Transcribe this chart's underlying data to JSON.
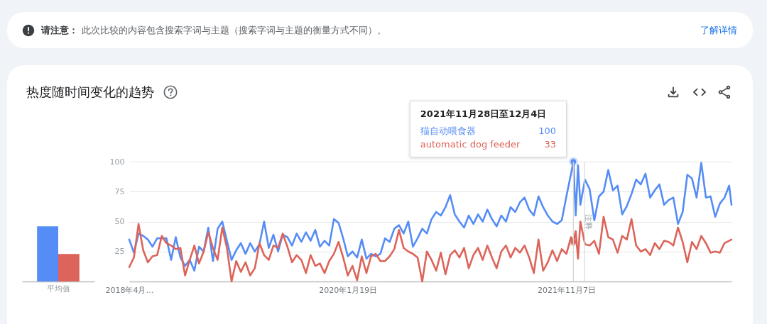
{
  "chart_data": [
    {
      "type": "other",
      "annotations": [
        "请注意：",
        "此次比较的内容包含搜索字词与主题（搜索字词与主题的衡量方式不同）。",
        "了解详情"
      ]
    },
    {
      "type": "bar",
      "title": "热度随时间变化的趋势",
      "categories": [
        "平均值"
      ],
      "series": [
        {
          "color": "#558cf5",
          "values": [
            46
          ]
        },
        {
          "color": "#dc645a",
          "values": [
            23
          ]
        }
      ],
      "ylim": [
        0,
        100
      ],
      "tick_labels": "x"
    },
    {
      "type": "line",
      "x": [
        "2018-04-01",
        "2018-04-15",
        "2018-04-29",
        "2018-05-13",
        "2018-05-27",
        "2018-06-10",
        "2018-06-24",
        "2018-07-08",
        "2018-07-22",
        "2018-08-05",
        "2018-08-19",
        "2018-09-02",
        "2018-09-16",
        "2018-09-30",
        "2018-10-14",
        "2018-10-28",
        "2018-11-11",
        "2018-11-25",
        "2018-12-09",
        "2018-12-23",
        "2019-01-06",
        "2019-01-20",
        "2019-02-03",
        "2019-02-17",
        "2019-03-03",
        "2019-03-17",
        "2019-03-31",
        "2019-04-14",
        "2019-04-28",
        "2019-05-12",
        "2019-05-26",
        "2019-06-09",
        "2019-06-23",
        "2019-07-07",
        "2019-07-21",
        "2019-08-04",
        "2019-08-18",
        "2019-09-01",
        "2019-09-15",
        "2019-09-29",
        "2019-10-13",
        "2019-10-27",
        "2019-11-10",
        "2019-11-24",
        "2019-12-08",
        "2019-12-22",
        "2020-01-05",
        "2020-01-19",
        "2020-02-02",
        "2020-02-16",
        "2020-03-01",
        "2020-03-15",
        "2020-03-29",
        "2020-04-12",
        "2020-04-26",
        "2020-05-10",
        "2020-05-24",
        "2020-06-07",
        "2020-06-21",
        "2020-07-05",
        "2020-07-19",
        "2020-08-02",
        "2020-08-16",
        "2020-08-30",
        "2020-09-13",
        "2020-09-27",
        "2020-10-11",
        "2020-10-25",
        "2020-11-08",
        "2020-11-22",
        "2020-12-06",
        "2020-12-20",
        "2021-01-03",
        "2021-01-17",
        "2021-01-31",
        "2021-02-14",
        "2021-02-28",
        "2021-03-14",
        "2021-03-28",
        "2021-04-11",
        "2021-04-25",
        "2021-05-09",
        "2021-05-23",
        "2021-06-06",
        "2021-06-20",
        "2021-07-04",
        "2021-07-18",
        "2021-08-01",
        "2021-08-15",
        "2021-08-29",
        "2021-09-12",
        "2021-09-26",
        "2021-10-10",
        "2021-10-24",
        "2021-11-07",
        "2021-11-21",
        "2021-11-28",
        "2021-12-05",
        "2021-12-12",
        "2021-12-19",
        "2022-01-02",
        "2022-01-16",
        "2022-01-30",
        "2022-02-13",
        "2022-02-27",
        "2022-03-13",
        "2022-03-27",
        "2022-04-10",
        "2022-04-24",
        "2022-05-08",
        "2022-05-22",
        "2022-06-05",
        "2022-06-19",
        "2022-07-03",
        "2022-07-17",
        "2022-07-31",
        "2022-08-14",
        "2022-08-28",
        "2022-09-11",
        "2022-09-25",
        "2022-10-09",
        "2022-10-23",
        "2022-11-06",
        "2022-11-20",
        "2022-12-04",
        "2022-12-18",
        "2023-01-01",
        "2023-01-15",
        "2023-01-29",
        "2023-02-12",
        "2023-02-26",
        "2023-03-12",
        "2023-03-19"
      ],
      "series": [
        {
          "name": "猫自动喂食器",
          "color": "#558cf5",
          "values": [
            35,
            24,
            40,
            38,
            35,
            29,
            36,
            36,
            36,
            18,
            37,
            20,
            13,
            18,
            9,
            29,
            25,
            45,
            17,
            44,
            50,
            34,
            18,
            26,
            32,
            23,
            32,
            25,
            31,
            50,
            28,
            39,
            25,
            39,
            37,
            30,
            40,
            33,
            41,
            34,
            43,
            29,
            34,
            30,
            52,
            49,
            36,
            21,
            25,
            20,
            35,
            19,
            23,
            21,
            23,
            36,
            33,
            44,
            47,
            40,
            50,
            29,
            36,
            44,
            40,
            52,
            58,
            55,
            62,
            72,
            56,
            50,
            45,
            55,
            48,
            56,
            50,
            60,
            52,
            46,
            55,
            50,
            62,
            58,
            66,
            70,
            60,
            55,
            71,
            62,
            55,
            50,
            48,
            51,
            71,
            90,
            100,
            55,
            97,
            64,
            85,
            77,
            51,
            71,
            75,
            93,
            76,
            80,
            56,
            63,
            73,
            85,
            81,
            90,
            70,
            76,
            81,
            64,
            68,
            70,
            48,
            58,
            89,
            86,
            70,
            99,
            70,
            71,
            54,
            65,
            70,
            80,
            64
          ]
        },
        {
          "name": "automatic dog feeder",
          "color": "#dc645a",
          "values": [
            12,
            20,
            48,
            26,
            16,
            21,
            22,
            38,
            32,
            30,
            27,
            28,
            5,
            18,
            30,
            15,
            25,
            41,
            28,
            18,
            45,
            28,
            0,
            17,
            8,
            16,
            5,
            11,
            32,
            22,
            18,
            30,
            28,
            40,
            29,
            16,
            22,
            18,
            7,
            22,
            13,
            15,
            7,
            17,
            23,
            33,
            20,
            5,
            13,
            1,
            21,
            7,
            21,
            23,
            17,
            17,
            21,
            27,
            43,
            28,
            25,
            23,
            20,
            0,
            25,
            18,
            9,
            24,
            6,
            22,
            26,
            20,
            28,
            11,
            22,
            28,
            18,
            30,
            20,
            11,
            25,
            30,
            20,
            28,
            24,
            30,
            20,
            7,
            35,
            9,
            16,
            26,
            17,
            27,
            23,
            37,
            33,
            42,
            19,
            50,
            31,
            30,
            34,
            23,
            54,
            37,
            35,
            24,
            38,
            35,
            52,
            30,
            25,
            27,
            22,
            32,
            27,
            34,
            33,
            30,
            45,
            33,
            16,
            33,
            27,
            38,
            32,
            24,
            25,
            24,
            32,
            34,
            35
          ]
        },
        {
          "type": "scatter",
          "marker": "circle",
          "x": [
            "2021-11-28",
            "2021-11-28"
          ],
          "values": [
            100,
            33
          ],
          "colors": [
            "#558cf5",
            "#dc645a"
          ]
        }
      ],
      "xlim": [
        "2018-04-01",
        "2023-03-19"
      ],
      "xticks": [
        {
          "value": "2018-04-01",
          "label": "2018年4月…"
        },
        {
          "value": "2020-01-19",
          "label": "2020年1月19日"
        },
        {
          "value": "2021-11-07",
          "label": "2021年11月7日"
        }
      ],
      "ylim": [
        0,
        100
      ],
      "yticks": [
        25,
        50,
        75,
        100
      ],
      "grid": "y",
      "ref_lines": [
        {
          "axis": "x",
          "value": "2022-01-01",
          "label": "注释",
          "color": "#dadce0"
        },
        {
          "axis": "x",
          "value": "2021-11-28",
          "color": "#d5d5d5"
        }
      ],
      "annotations": [
        "2021年11月28日至12月4日",
        "100",
        "33"
      ]
    }
  ]
}
